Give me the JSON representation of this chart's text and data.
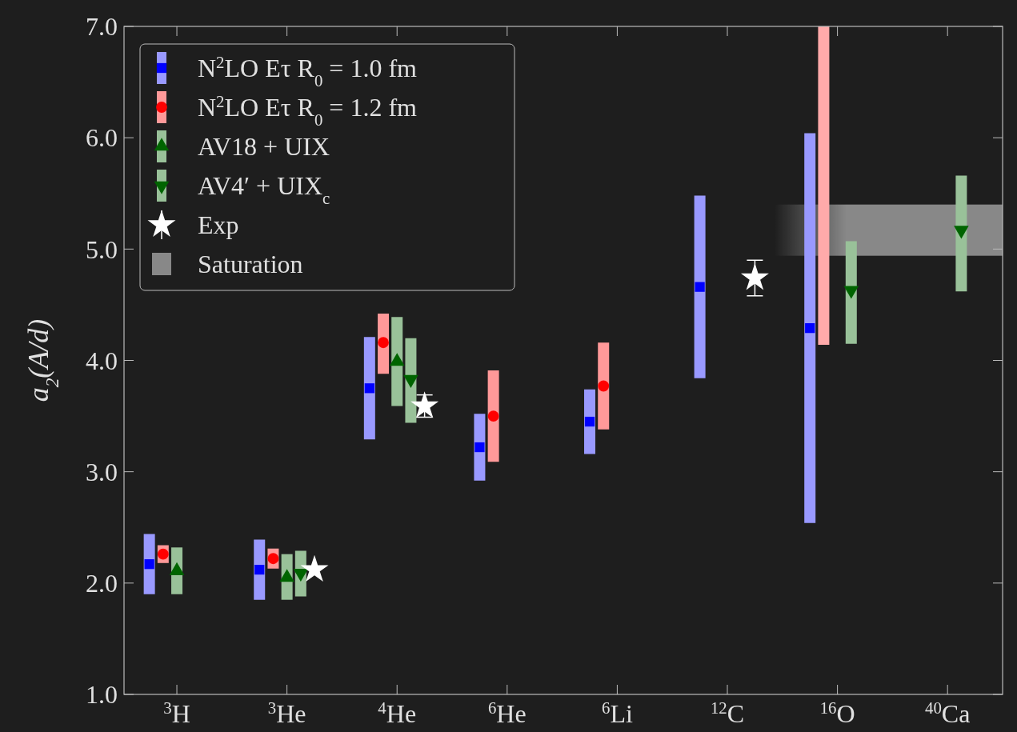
{
  "chart_data": {
    "type": "scatter",
    "ylabel": "a$_{2}$(A/d)",
    "ylim": [
      1.0,
      7.0
    ],
    "categories": [
      "$^{3}$H",
      "$^{3}$He",
      "$^{4}$He",
      "$^{6}$He",
      "$^{6}$Li",
      "$^{12}$C",
      "$^{16}$O",
      "$^{40}$Ca"
    ],
    "yticks": [
      {
        "value": 1,
        "label": "1.0"
      },
      {
        "value": 2,
        "label": "2.0"
      },
      {
        "value": 3,
        "label": "3.0"
      },
      {
        "value": 4,
        "label": "4.0"
      },
      {
        "value": 5,
        "label": "5.0"
      },
      {
        "value": 6,
        "label": "6.0"
      },
      {
        "value": 7,
        "label": "7.0"
      }
    ],
    "legend": "top left",
    "grid": false,
    "series": [
      {
        "name": "N$^{2}$LO Eτ R$_{0}$ = 1.0 fm",
        "color": "#0000ff",
        "marker": "square",
        "values": [
          2.17,
          2.12,
          3.75,
          3.22,
          3.45,
          4.66,
          4.29,
          null
        ],
        "errors": [
          [
            1.9,
            2.44
          ],
          [
            1.85,
            2.39
          ],
          [
            3.29,
            4.21
          ],
          [
            2.92,
            3.52
          ],
          [
            3.16,
            3.74
          ],
          [
            3.84,
            5.48
          ],
          [
            2.54,
            6.04
          ],
          null
        ]
      },
      {
        "name": "N$^{2}$LO Eτ R$_{0}$ = 1.2 fm",
        "color": "#ff0000",
        "marker": "circle",
        "values": [
          2.26,
          2.22,
          4.16,
          3.5,
          3.77,
          null,
          null,
          null
        ],
        "errors": [
          [
            2.18,
            2.34
          ],
          [
            2.13,
            2.31
          ],
          [
            3.88,
            4.42
          ],
          [
            3.09,
            3.91
          ],
          [
            3.38,
            4.16
          ],
          null,
          null,
          null
        ]
      },
      {
        "type": "bar",
        "color": "#ffaaaa",
        "base": [
          null,
          null,
          null,
          null,
          null,
          null,
          4.14,
          null
        ],
        "values": [
          null,
          null,
          null,
          null,
          null,
          null,
          2.86,
          null
        ]
      },
      {
        "name": "AV18 + UIX",
        "color": "#006400",
        "marker": "triangle",
        "values": [
          2.11,
          2.05,
          3.99,
          null,
          null,
          null,
          null,
          null
        ],
        "errors": [
          [
            1.9,
            2.32
          ],
          [
            1.85,
            2.26
          ],
          [
            3.59,
            4.39
          ],
          null,
          null,
          null,
          null,
          null
        ]
      },
      {
        "name": "AV4′ + UIX$_{c}$",
        "color": "#006400",
        "marker": "triangle-down",
        "values": [
          null,
          2.09,
          3.83,
          null,
          null,
          null,
          4.63,
          5.17
        ],
        "errors": [
          null,
          [
            1.88,
            2.29
          ],
          [
            3.44,
            4.2
          ],
          null,
          null,
          null,
          [
            4.15,
            5.07
          ],
          [
            4.62,
            5.66
          ]
        ]
      },
      {
        "name": "Exp",
        "color": "#ffffff",
        "marker": "star",
        "values": [
          null,
          2.12,
          3.59,
          null,
          null,
          4.74,
          null,
          null
        ],
        "errors": [
          null,
          null,
          [
            3.49,
            3.69
          ],
          null,
          null,
          [
            4.58,
            4.9
          ],
          null,
          null
        ]
      }
    ],
    "bands": [
      {
        "axis": "y",
        "from": 4.94,
        "to": 5.4,
        "label": "Saturation",
        "color": "#888888"
      }
    ]
  }
}
